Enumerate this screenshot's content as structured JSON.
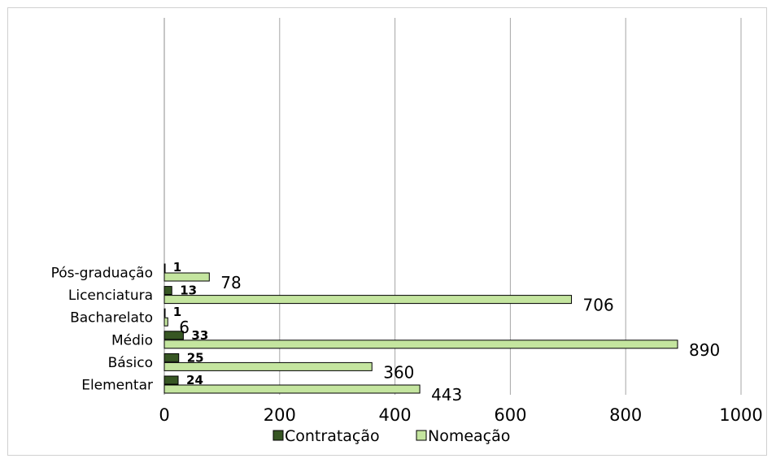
{
  "chart_data": {
    "type": "bar",
    "orientation": "horizontal",
    "categories": [
      "Elementar",
      "Básico",
      "Médio",
      "Bacharelato",
      "Licenciatura",
      "Pós-graduação"
    ],
    "series": [
      {
        "name": "Contratação",
        "values": [
          24,
          25,
          33,
          1,
          13,
          1
        ],
        "color": "#375623"
      },
      {
        "name": "Nomeação",
        "values": [
          443,
          360,
          890,
          6,
          706,
          78
        ],
        "color": "#c4e59f"
      }
    ],
    "xticks": [
      "0",
      "200",
      "400",
      "600",
      "800",
      "1000"
    ],
    "xlim": [
      0,
      1000
    ],
    "grid": true,
    "legend_position": "bottom"
  }
}
